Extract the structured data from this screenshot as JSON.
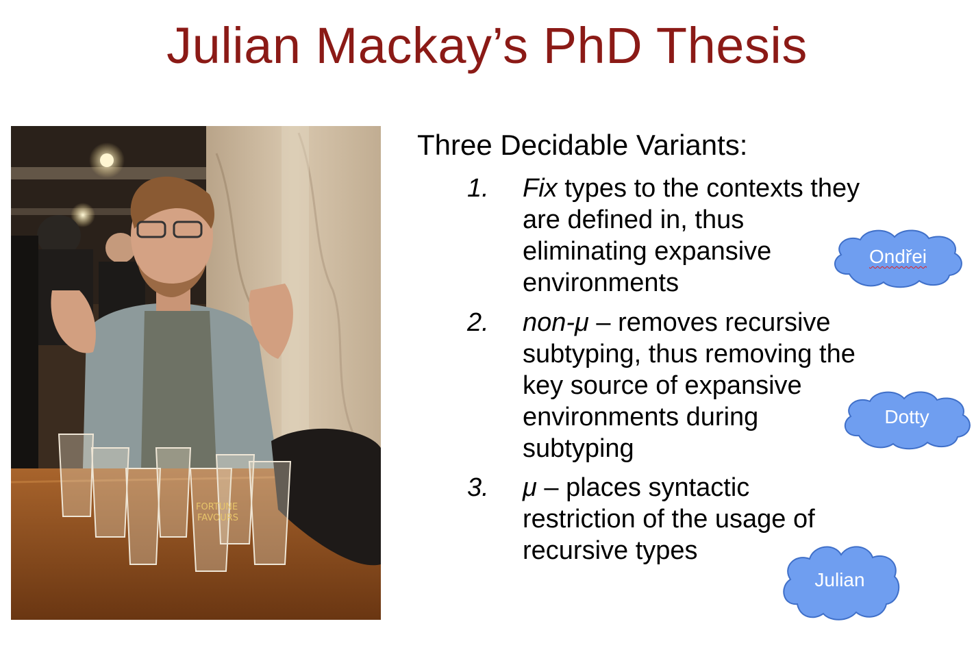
{
  "slide": {
    "title": "Julian Mackay’s PhD Thesis",
    "heading": "Three Decidable Variants:",
    "items": [
      {
        "number": "1.",
        "lines": [
          {
            "em": "Fix",
            "rest": " types to the contexts they"
          },
          {
            "em": "",
            "rest": "are defined in, thus"
          },
          {
            "em": "",
            "rest": "eliminating expansive"
          },
          {
            "em": "",
            "rest": "environments"
          }
        ]
      },
      {
        "number": "2.",
        "lines": [
          {
            "em": "non-μ",
            "rest": " – removes recursive"
          },
          {
            "em": "",
            "rest": "subtyping, thus removing the"
          },
          {
            "em": "",
            "rest": "key source of expansive"
          },
          {
            "em": "",
            "rest": "environments during"
          },
          {
            "em": "",
            "rest": "subtyping"
          }
        ]
      },
      {
        "number": "3.",
        "lines": [
          {
            "em": "μ",
            "rest": " – places syntactic"
          },
          {
            "em": "",
            "rest": "restriction of the usage of"
          },
          {
            "em": "",
            "rest": "recursive types"
          }
        ]
      }
    ],
    "clouds": [
      {
        "label": "Ondřei"
      },
      {
        "label": "Dotty"
      },
      {
        "label": "Julian"
      }
    ],
    "photo": {
      "glass_print_1": "FORTUNE",
      "glass_print_2": "FAVOURS"
    }
  },
  "colors": {
    "title": "#8b1a16",
    "cloud_fill": "#6f9ef0",
    "cloud_stroke": "#3f6fc8"
  }
}
